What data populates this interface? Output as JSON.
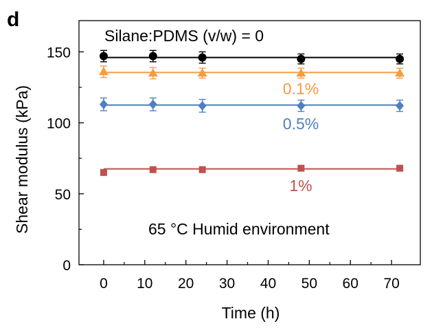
{
  "panel_label": "d",
  "chart_data": {
    "type": "scatter",
    "title": "",
    "xlabel": "Time (h)",
    "ylabel": "Shear modulus (kPa)",
    "xlim": [
      -6,
      77
    ],
    "ylim": [
      0,
      172
    ],
    "xticks": [
      0,
      10,
      20,
      30,
      40,
      50,
      60,
      70
    ],
    "yticks": [
      0,
      50,
      100,
      150
    ],
    "grid": false,
    "legend": "none",
    "annotations": {
      "header": "Silane:PDMS (v/w) = 0",
      "condition": "65 °C Humid environment"
    },
    "series": [
      {
        "label": "",
        "color": "#000000",
        "marker": "circle",
        "x": [
          0,
          12,
          24,
          48,
          72
        ],
        "y": [
          147,
          147,
          146,
          145,
          145
        ],
        "err": [
          4,
          4,
          4,
          3.5,
          3.5
        ],
        "fit": 146
      },
      {
        "label": "0.1%",
        "color": "#f39c40",
        "marker": "triangle",
        "x": [
          0,
          12,
          24,
          48,
          72
        ],
        "y": [
          136,
          135,
          135,
          135,
          135
        ],
        "err": [
          4,
          4,
          3.5,
          3.5,
          3.5
        ],
        "fit": 135.5
      },
      {
        "label": "0.5%",
        "color": "#4f7fc0",
        "marker": "diamond",
        "x": [
          0,
          12,
          24,
          48,
          72
        ],
        "y": [
          113,
          113,
          112,
          112,
          112
        ],
        "err": [
          4.5,
          4.5,
          4.5,
          4,
          4
        ],
        "fit": 112.5
      },
      {
        "label": "1%",
        "color": "#c0504d",
        "marker": "square",
        "x": [
          0,
          12,
          24,
          48,
          72
        ],
        "y": [
          65,
          67,
          67,
          68,
          68
        ],
        "err": [
          0,
          0,
          0,
          0,
          0
        ],
        "fit": 67.5
      }
    ]
  }
}
